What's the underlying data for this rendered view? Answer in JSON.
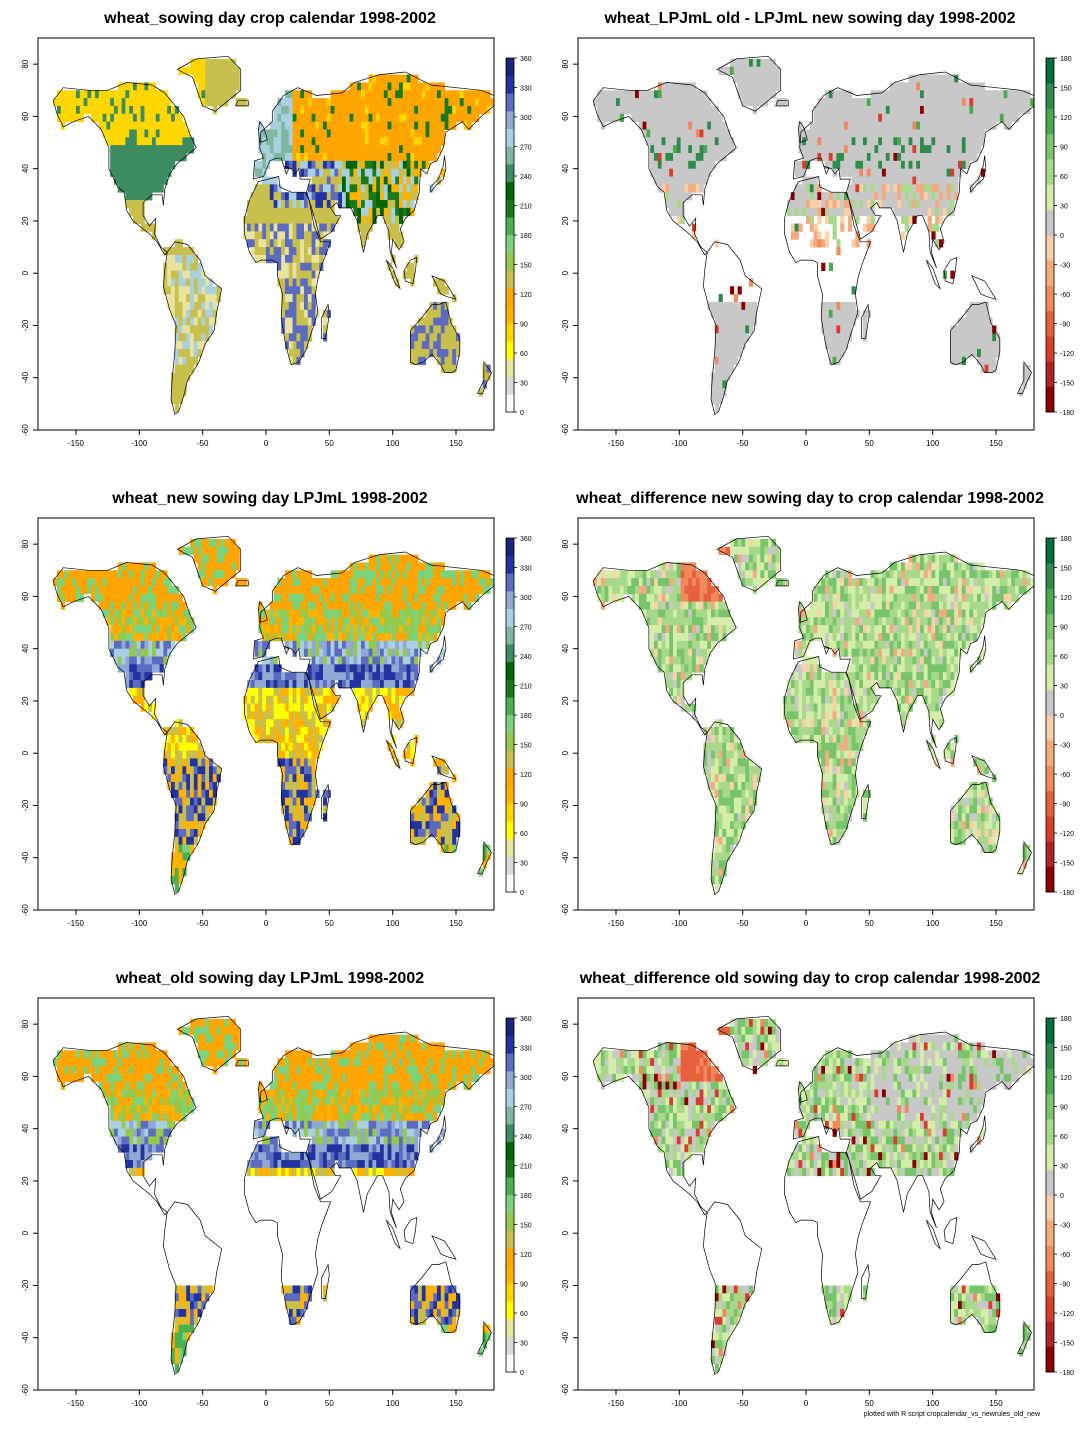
{
  "panels": [
    {
      "title": "wheat_sowing day crop calendar 1998-2002",
      "scale": "days",
      "pattern": "calendar"
    },
    {
      "title": "wheat_LPJmL old - LPJmL new sowing day 1998-2002",
      "scale": "diff",
      "pattern": "olddiff"
    },
    {
      "title": "wheat_new sowing day LPJmL 1998-2002",
      "scale": "days",
      "pattern": "newday"
    },
    {
      "title": "wheat_difference new sowing day to crop calendar 1998-2002",
      "scale": "diff",
      "pattern": "newcal"
    },
    {
      "title": "wheat_old sowing day LPJmL 1998-2002",
      "scale": "days",
      "pattern": "oldday"
    },
    {
      "title": "wheat_difference old sowing day to crop calendar 1998-2002",
      "scale": "diff",
      "pattern": "oldcal"
    }
  ],
  "axes": {
    "x_ticks": [
      -150,
      -100,
      -50,
      0,
      50,
      100,
      150
    ],
    "y_ticks": [
      80,
      60,
      40,
      20,
      0,
      -20,
      -40,
      -60
    ],
    "xlim": [
      -180,
      180
    ],
    "ylim": [
      -60,
      90
    ]
  },
  "legends": {
    "days": {
      "ticks": [
        "360",
        "330",
        "300",
        "270",
        "240",
        "210",
        "180",
        "150",
        "120",
        "90",
        "60",
        "30",
        "0"
      ],
      "colors": [
        "#ffffff",
        "#d9d9d9",
        "#e8e4a0",
        "#ffff00",
        "#ffd700",
        "#ffb300",
        "#ffa500",
        "#c9bf4c",
        "#96c94a",
        "#7bd47b",
        "#4caf50",
        "#1a7a1a",
        "#006400",
        "#3d8c60",
        "#7fb8a0",
        "#a8d0e0",
        "#8fa8d4",
        "#5c6bc0",
        "#2233a0",
        "#1a237e"
      ]
    },
    "diff": {
      "ticks": [
        "180",
        "150",
        "120",
        "90",
        "60",
        "30",
        "0",
        "-30",
        "-60",
        "-90",
        "-120",
        "-150",
        "-180"
      ],
      "colors": [
        "#8b0000",
        "#b22222",
        "#d73c2c",
        "#e8603c",
        "#f08a5e",
        "#f5a97f",
        "#fbcfa8",
        "#c8c8c8",
        "#d4eda8",
        "#a8d98a",
        "#78c46a",
        "#4ea84e",
        "#2e8b4a",
        "#006d3a"
      ]
    }
  },
  "colors": {
    "frame": "#000000",
    "coastline": "#000000",
    "na": "#ffffff"
  },
  "credit": "plotted with R script cropcalendar_vs_newrules_old_new"
}
